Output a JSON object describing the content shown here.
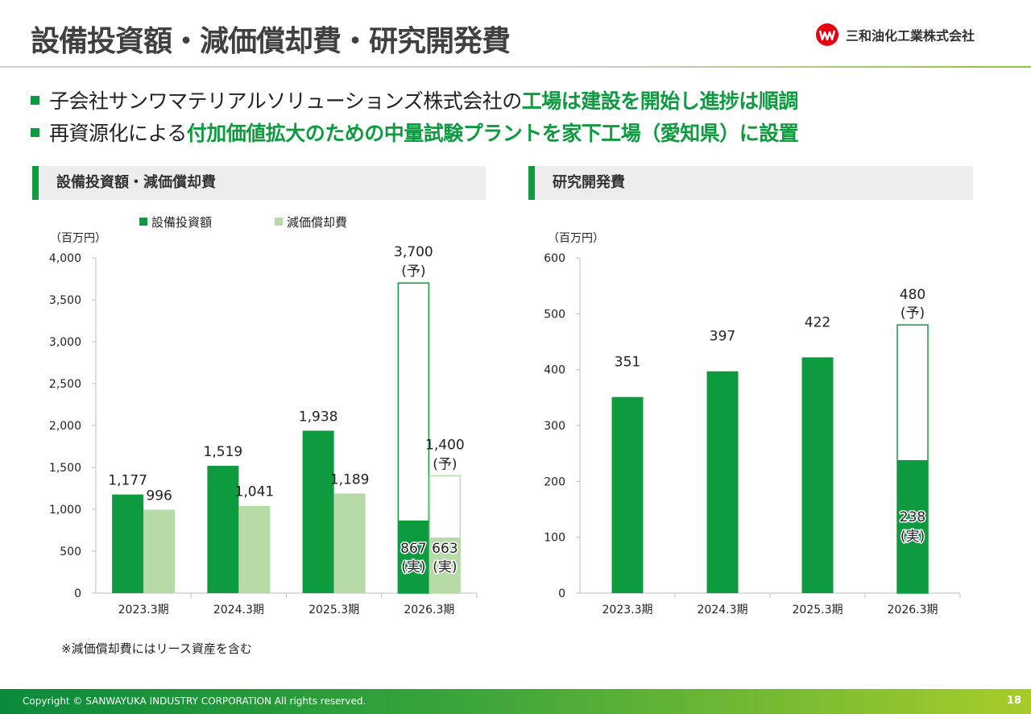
{
  "header": {
    "title": "設備投資額・減価償却費・研究開発費",
    "company": "三和油化工業株式会社"
  },
  "bullets": [
    {
      "plain": "子会社サンワマテリアルソリューションズ株式会社の",
      "highlight": "工場は建設を開始し進捗は順調"
    },
    {
      "plain": "再資源化による",
      "highlight": "付加価値拡大のための中量試験プラントを家下工場（愛知県）に設置"
    }
  ],
  "sections": {
    "left": "設備投資額・減価償却費",
    "right": "研究開発費"
  },
  "note": "※減価償却費にはリース資産を含む",
  "footer": {
    "copyright": "Copyright © SANWAYUKA INDUSTRY CORPORATION All rights reserved.",
    "page": "18"
  },
  "colors": {
    "dark_green": "#0e9b40",
    "light_green": "#b6dba6",
    "text": "#222222"
  },
  "chart_data": [
    {
      "type": "bar",
      "title": "設備投資額・減価償却費",
      "ylabel": "（百万円）",
      "ylim": [
        0,
        4000
      ],
      "yticks": [
        0,
        500,
        1000,
        1500,
        2000,
        2500,
        3000,
        3500,
        4000
      ],
      "ytick_labels": [
        "0",
        "500",
        "1,000",
        "1,500",
        "2,000",
        "2,500",
        "3,000",
        "3,500",
        "4,000"
      ],
      "categories": [
        "2023.3期",
        "2024.3期",
        "2025.3期",
        "2026.3期"
      ],
      "legend": [
        "設備投資額",
        "減価償却費"
      ],
      "series": [
        {
          "name": "設備投資額",
          "values": [
            1177,
            1519,
            1938,
            867
          ],
          "labels": [
            "1,177",
            "1,519",
            "1,938",
            "867"
          ],
          "forecast": 3700,
          "forecast_label": "3,700"
        },
        {
          "name": "減価償却費",
          "values": [
            996,
            1041,
            1189,
            663
          ],
          "labels": [
            "996",
            "1,041",
            "1,189",
            "663"
          ],
          "forecast": 1400,
          "forecast_label": "1,400"
        }
      ],
      "actual_mark": "(実)",
      "forecast_mark": "(予)"
    },
    {
      "type": "bar",
      "title": "研究開発費",
      "ylabel": "（百万円）",
      "ylim": [
        0,
        600
      ],
      "yticks": [
        0,
        100,
        200,
        300,
        400,
        500,
        600
      ],
      "ytick_labels": [
        "0",
        "100",
        "200",
        "300",
        "400",
        "500",
        "600"
      ],
      "categories": [
        "2023.3期",
        "2024.3期",
        "2025.3期",
        "2026.3期"
      ],
      "series": [
        {
          "name": "研究開発費",
          "values": [
            351,
            397,
            422,
            238
          ],
          "labels": [
            "351",
            "397",
            "422",
            "238"
          ],
          "forecast": 480,
          "forecast_label": "480"
        }
      ],
      "actual_mark": "(実)",
      "forecast_mark": "(予)"
    }
  ]
}
